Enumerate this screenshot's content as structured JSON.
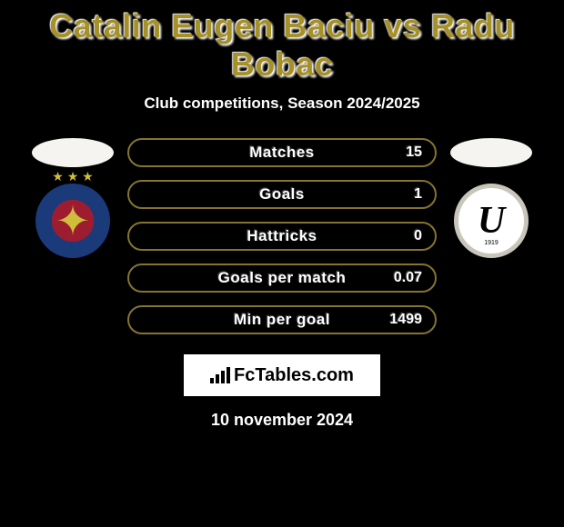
{
  "title": "Catalin Eugen Baciu vs Radu Bobac",
  "subtitle": "Club competitions, Season 2024/2025",
  "colors": {
    "accent": "#a69028",
    "bar_border": "#847430",
    "background": "#000000",
    "text": "#ffffff"
  },
  "stats": [
    {
      "label": "Matches",
      "value": "15"
    },
    {
      "label": "Goals",
      "value": "1"
    },
    {
      "label": "Hattricks",
      "value": "0"
    },
    {
      "label": "Goals per match",
      "value": "0.07"
    },
    {
      "label": "Min per goal",
      "value": "1499"
    }
  ],
  "left_club": {
    "name": "FCSB",
    "glyph": "✦"
  },
  "right_club": {
    "name": "Universitatea Cluj",
    "letter": "U",
    "year": "1919"
  },
  "brand": "FcTables.com",
  "date": "10 november 2024"
}
